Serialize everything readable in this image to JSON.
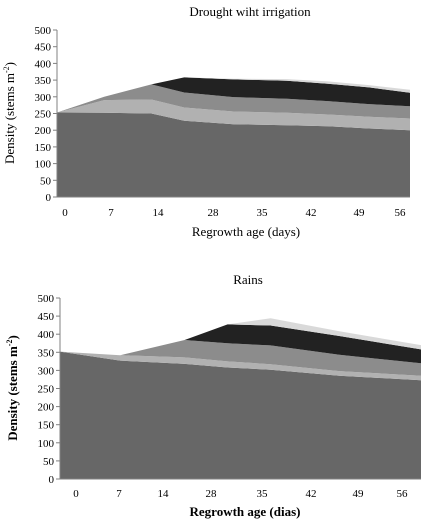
{
  "colors": {
    "background": "#ffffff",
    "axis": "#808080",
    "layers": [
      "#676767",
      "#b1b1b1",
      "#8c8c8c",
      "#222222",
      "#d9d9d9"
    ]
  },
  "chart_data": [
    {
      "type": "area",
      "stacked": true,
      "title": "Drought wiht irrigation",
      "xlabel": "Regrowth age (days)",
      "ylabel": "Density  (stems m-2)",
      "ylabel_main": "Density  (stems m",
      "ylabel_sup": "-2",
      "ylabel_close": ")",
      "categories": [
        "0",
        "7",
        "14",
        "28",
        "35",
        "42",
        "49",
        "56"
      ],
      "ylim": [
        0,
        500
      ],
      "yticks": [
        0,
        50,
        100,
        150,
        200,
        250,
        300,
        350,
        400,
        450,
        500
      ],
      "grid": false,
      "x": [
        0,
        1.15,
        2.3,
        3.1,
        4.3,
        5.6,
        6.6,
        7.6,
        8.6
      ],
      "series": [
        {
          "values": [
            253,
            252,
            250,
            228,
            218,
            215,
            212,
            205,
            200
          ]
        },
        {
          "values": [
            0,
            38,
            42,
            40,
            38,
            37,
            35,
            35,
            35
          ]
        },
        {
          "values": [
            0,
            10,
            45,
            45,
            43,
            42,
            40,
            38,
            37
          ]
        },
        {
          "values": [
            0,
            0,
            0,
            45,
            53,
            54,
            52,
            50,
            40
          ]
        },
        {
          "values": [
            0,
            0,
            0,
            0,
            2,
            5,
            7,
            7,
            9
          ]
        }
      ]
    },
    {
      "type": "area",
      "stacked": true,
      "title": "Rains",
      "xlabel": "Regrowth age (dias)",
      "ylabel": "Density  (stems m-2)",
      "ylabel_main": "Density  (stems m",
      "ylabel_sup": "-2",
      "ylabel_close": ")",
      "categories": [
        "0",
        "7",
        "14",
        "28",
        "35",
        "42",
        "49",
        "56"
      ],
      "ylim": [
        0,
        500
      ],
      "yticks": [
        0,
        50,
        100,
        150,
        200,
        250,
        300,
        350,
        400,
        450,
        500
      ],
      "grid": false,
      "x": [
        0,
        1.4,
        2.9,
        3.9,
        4.9,
        6.5,
        8.4
      ],
      "series": [
        {
          "values": [
            352,
            327,
            318,
            308,
            302,
            285,
            273
          ]
        },
        {
          "values": [
            0,
            15,
            18,
            17,
            15,
            13,
            12
          ]
        },
        {
          "values": [
            0,
            0,
            48,
            50,
            52,
            45,
            35
          ]
        },
        {
          "values": [
            0,
            0,
            0,
            52,
            55,
            52,
            38
          ]
        },
        {
          "values": [
            0,
            0,
            0,
            0,
            20,
            13,
            12
          ]
        }
      ]
    }
  ]
}
